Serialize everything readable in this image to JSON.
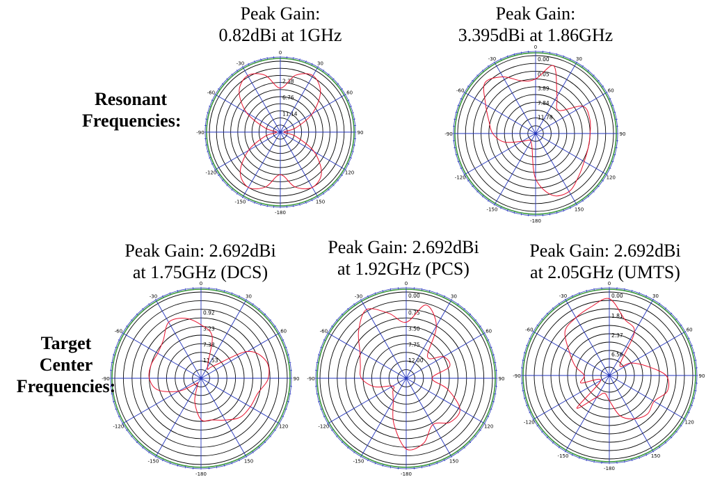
{
  "row_labels": {
    "resonant": [
      "Resonant",
      "Frequencies:"
    ],
    "target": [
      "Target",
      "Center",
      "Frequencies:"
    ]
  },
  "colors": {
    "pattern": "#e8112d",
    "spokes": "#2233bb",
    "rings": "#000000",
    "outer_rim": "#3a9a3a",
    "rim_ticks": "#2233bb"
  },
  "chart_data": [
    {
      "type": "polar",
      "title_lines": [
        "Peak Gain:",
        "0.82dBi at 1GHz"
      ],
      "angle_ticks": [
        "0",
        "30",
        "60",
        "90",
        "120",
        "150",
        "-180",
        "-150",
        "-120",
        "-90",
        "-60",
        "-30"
      ],
      "radial_labels": [
        "2.38",
        "6.76",
        "11.14"
      ],
      "grid": true,
      "theta_deg": [
        0,
        15,
        30,
        45,
        60,
        75,
        90,
        105,
        120,
        135,
        150,
        165,
        180,
        195,
        210,
        225,
        240,
        255,
        270,
        285,
        300,
        315,
        330,
        345
      ],
      "r_norm": [
        0.62,
        0.83,
        0.92,
        0.8,
        0.52,
        0.22,
        0.05,
        0.22,
        0.55,
        0.82,
        0.9,
        0.8,
        0.6,
        0.8,
        0.9,
        0.8,
        0.52,
        0.22,
        0.05,
        0.22,
        0.55,
        0.82,
        0.92,
        0.83
      ]
    },
    {
      "type": "polar",
      "title_lines": [
        "Peak Gain:",
        "3.395dBi at 1.86GHz"
      ],
      "angle_ticks": [
        "0",
        "30",
        "60",
        "90",
        "120",
        "150",
        "-180",
        "-150",
        "-120",
        "-90",
        "-60",
        "-30"
      ],
      "radial_labels": [
        "0.05",
        "3.89",
        "7.84",
        "11.78"
      ],
      "top_label": "0.00",
      "grid": true,
      "theta_deg": [
        0,
        15,
        30,
        45,
        60,
        75,
        90,
        105,
        120,
        135,
        150,
        165,
        180,
        195,
        210,
        225,
        240,
        255,
        270,
        285,
        300,
        315,
        330,
        345
      ],
      "r_norm": [
        0.7,
        0.9,
        0.55,
        0.42,
        0.7,
        0.72,
        0.7,
        0.7,
        0.72,
        0.78,
        0.86,
        0.82,
        0.58,
        0.18,
        0.12,
        0.12,
        0.2,
        0.42,
        0.55,
        0.62,
        0.74,
        0.92,
        0.84,
        0.7
      ]
    },
    {
      "type": "polar",
      "title_lines": [
        "Peak Gain: 2.692dBi",
        "at 1.75GHz (DCS)"
      ],
      "angle_ticks": [
        "0",
        "30",
        "60",
        "90",
        "120",
        "150",
        "-180",
        "-150",
        "-120",
        "-90",
        "-60",
        "-30"
      ],
      "radial_labels": [
        "0.92",
        "3.23",
        "7.38",
        "11.53"
      ],
      "grid": true,
      "theta_deg": [
        0,
        15,
        30,
        45,
        60,
        75,
        90,
        105,
        120,
        135,
        150,
        165,
        180,
        195,
        210,
        225,
        240,
        255,
        270,
        285,
        300,
        315,
        330,
        345
      ],
      "r_norm": [
        0.62,
        0.5,
        0.15,
        0.2,
        0.62,
        0.78,
        0.78,
        0.68,
        0.66,
        0.64,
        0.56,
        0.5,
        0.48,
        0.28,
        0.08,
        0.1,
        0.3,
        0.52,
        0.6,
        0.6,
        0.58,
        0.62,
        0.75,
        0.72
      ]
    },
    {
      "type": "polar",
      "title_lines": [
        "Peak Gain: 2.692dBi",
        "at 1.92GHz (PCS)"
      ],
      "angle_ticks": [
        "0",
        "30",
        "60",
        "90",
        "120",
        "150",
        "-180",
        "-150",
        "-120",
        "-90",
        "-60",
        "-30"
      ],
      "radial_labels": [
        "0.75",
        "3.50",
        "7.75",
        "12.00"
      ],
      "top_label": "0.00",
      "grid": true,
      "theta_deg": [
        0,
        15,
        30,
        45,
        60,
        75,
        90,
        105,
        120,
        135,
        150,
        165,
        180,
        195,
        210,
        225,
        240,
        255,
        270,
        285,
        300,
        315,
        330,
        345
      ],
      "r_norm": [
        0.65,
        0.88,
        0.7,
        0.35,
        0.5,
        0.52,
        0.3,
        0.5,
        0.72,
        0.72,
        0.62,
        0.78,
        0.82,
        0.55,
        0.3,
        0.22,
        0.18,
        0.38,
        0.52,
        0.55,
        0.62,
        0.78,
        0.92,
        0.78
      ]
    },
    {
      "type": "polar",
      "title_lines": [
        "Peak Gain: 2.692dBi",
        "at 2.05GHz (UMTS)"
      ],
      "angle_ticks": [
        "0",
        "30",
        "60",
        "90",
        "120",
        "150",
        "-180",
        "-150",
        "-120",
        "-90",
        "-60",
        "-30"
      ],
      "radial_labels": [
        "1.81",
        "2.37",
        "6.56"
      ],
      "top_label": "0.00",
      "grid": true,
      "theta_deg": [
        0,
        15,
        30,
        45,
        60,
        75,
        90,
        105,
        120,
        135,
        150,
        165,
        180,
        195,
        210,
        225,
        240,
        255,
        270,
        285,
        300,
        315,
        330,
        345
      ],
      "r_norm": [
        0.92,
        0.7,
        0.6,
        0.18,
        0.3,
        0.45,
        0.68,
        0.72,
        0.62,
        0.65,
        0.6,
        0.5,
        0.3,
        0.22,
        0.3,
        0.55,
        0.12,
        0.35,
        0.3,
        0.42,
        0.55,
        0.75,
        0.8,
        0.85
      ]
    }
  ]
}
